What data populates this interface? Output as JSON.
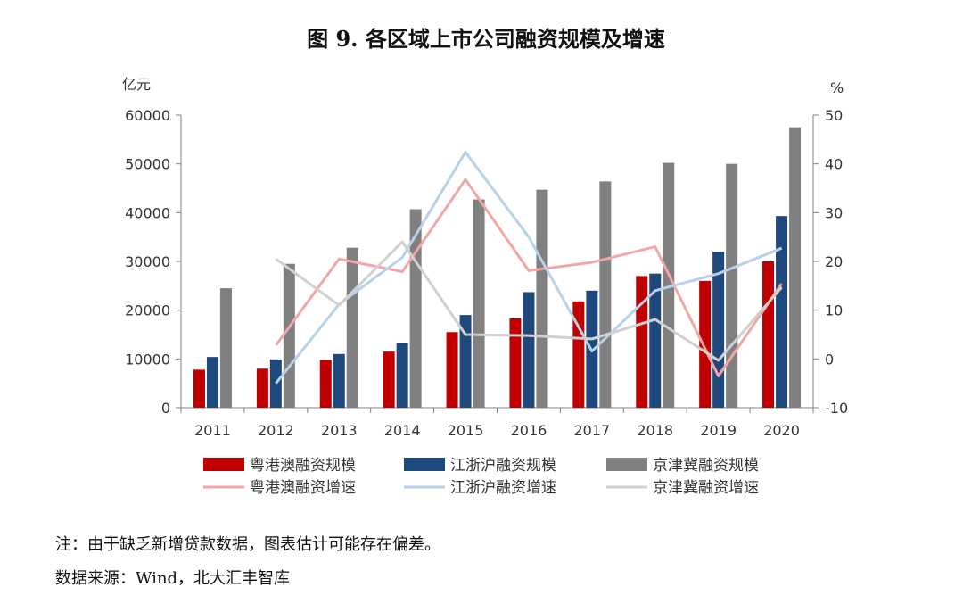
{
  "chart_data": {
    "type": "bar",
    "title": "图 9.  各区域上市公司融资规模及增速",
    "ylabel_left": "亿元",
    "ylabel_right": "%",
    "categories": [
      "2011",
      "2012",
      "2013",
      "2014",
      "2015",
      "2016",
      "2017",
      "2018",
      "2019",
      "2020"
    ],
    "ylim_left": [
      0,
      60000
    ],
    "yticks_left": [
      "0",
      "10000",
      "20000",
      "30000",
      "40000",
      "50000",
      "60000"
    ],
    "ylim_right": [
      -10,
      50
    ],
    "yticks_right": [
      "-10",
      "0",
      "10",
      "20",
      "30",
      "40",
      "50"
    ],
    "bar_series": [
      {
        "name": "粤港澳融资规模",
        "color": "#c00000",
        "values": [
          7800,
          8000,
          9800,
          11500,
          15500,
          18300,
          21800,
          27000,
          26000,
          30000
        ]
      },
      {
        "name": "江浙沪融资规模",
        "color": "#1f497d",
        "values": [
          10400,
          9900,
          11000,
          13300,
          19000,
          23700,
          24000,
          27500,
          32000,
          39300
        ]
      },
      {
        "name": "京津冀融资规模",
        "color": "#808080",
        "values": [
          24500,
          29500,
          32800,
          40700,
          42700,
          44700,
          46400,
          50200,
          50000,
          57500
        ]
      }
    ],
    "line_series": [
      {
        "name": "粤港澳融资增速",
        "color": "#f4a6a6",
        "values": [
          null,
          2.8,
          20.5,
          17.9,
          36.8,
          18.1,
          19.8,
          23.0,
          -3.5,
          15.4
        ]
      },
      {
        "name": "江浙沪融资增速",
        "color": "#b7d1ea",
        "values": [
          null,
          -5.0,
          11.2,
          20.8,
          42.4,
          25.0,
          1.6,
          14.0,
          17.5,
          22.7
        ]
      },
      {
        "name": "京津冀融资增速",
        "color": "#d0d0d0",
        "values": [
          null,
          20.5,
          11.0,
          24.0,
          5.0,
          4.8,
          4.1,
          8.1,
          -0.3,
          14.7
        ]
      }
    ],
    "legend_position": "bottom",
    "grid": false
  },
  "footer": {
    "note": "注：由于缺乏新增贷款数据，图表估计可能存在偏差。",
    "source": "数据来源：Wind，北大汇丰智库"
  }
}
